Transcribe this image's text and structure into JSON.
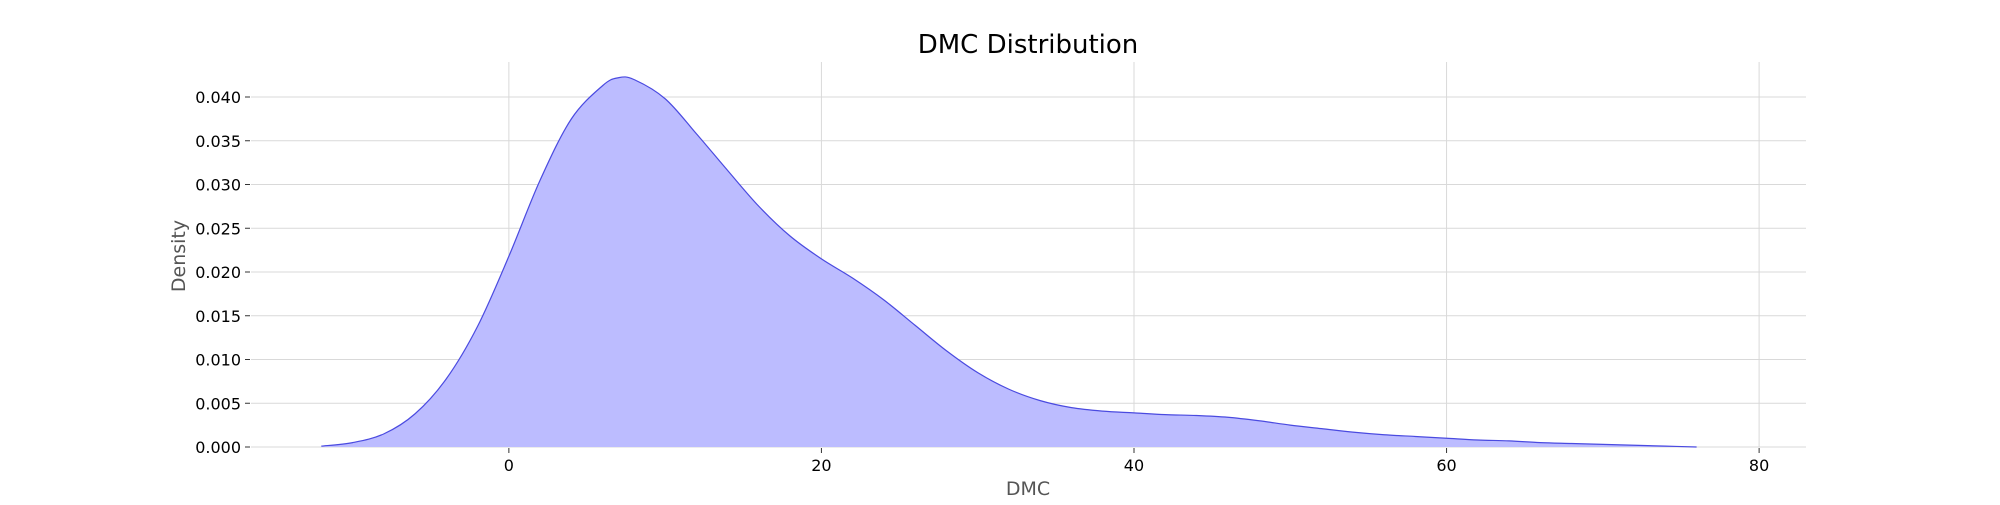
{
  "chart_data": {
    "type": "area",
    "title": "DMC Distribution",
    "xlabel": "DMC",
    "ylabel": "Density",
    "xlim": [
      -16.5,
      83
    ],
    "ylim": [
      0,
      0.044
    ],
    "xticks": [
      0,
      20,
      40,
      60,
      80
    ],
    "yticks": [
      0.0,
      0.005,
      0.01,
      0.015,
      0.02,
      0.025,
      0.03,
      0.035,
      0.04
    ],
    "ytick_labels": [
      "0.000",
      "0.005",
      "0.010",
      "0.015",
      "0.020",
      "0.025",
      "0.030",
      "0.035",
      "0.040"
    ],
    "grid": true,
    "colors": {
      "fill": "#bcbcff",
      "line": "#4a4ae0",
      "grid": "#d9d9d9"
    },
    "series": [
      {
        "x": [
          -12,
          -10,
          -8,
          -6,
          -4,
          -2,
          0,
          2,
          4,
          6,
          7,
          8,
          10,
          12,
          14,
          16,
          18,
          20,
          22,
          24,
          26,
          28,
          30,
          32,
          34,
          36,
          38,
          40,
          42,
          44,
          46,
          48,
          50,
          52,
          54,
          56,
          58,
          60,
          62,
          64,
          66,
          68,
          70,
          72,
          74,
          76
        ],
        "y": [
          0.0001,
          0.0005,
          0.0015,
          0.0038,
          0.0078,
          0.0138,
          0.0218,
          0.0305,
          0.0375,
          0.0413,
          0.0422,
          0.042,
          0.0398,
          0.0358,
          0.0316,
          0.0275,
          0.0241,
          0.0215,
          0.0193,
          0.0168,
          0.0139,
          0.011,
          0.0085,
          0.0066,
          0.0053,
          0.0045,
          0.0041,
          0.0039,
          0.0037,
          0.0036,
          0.0034,
          0.003,
          0.0025,
          0.0021,
          0.0017,
          0.0014,
          0.0012,
          0.001,
          0.0008,
          0.0007,
          0.0005,
          0.0004,
          0.0003,
          0.0002,
          0.0001,
          0.0
        ]
      }
    ]
  }
}
